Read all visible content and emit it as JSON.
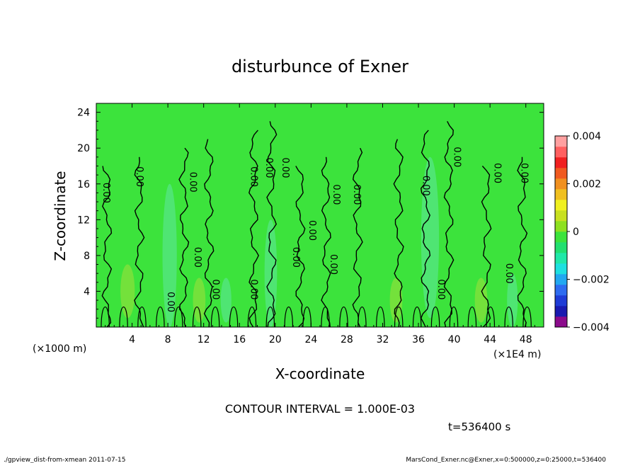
{
  "chart_data": {
    "type": "heatmap",
    "title": "disturbunce of Exner",
    "xlabel": "X-coordinate",
    "ylabel": "Z-coordinate",
    "x_unit_label": "(×1E4 m)",
    "y_unit_label": "(×1000 m)",
    "xlim": [
      0,
      50
    ],
    "ylim": [
      0,
      25
    ],
    "xticks": [
      4,
      8,
      12,
      16,
      20,
      24,
      28,
      32,
      36,
      40,
      44,
      48
    ],
    "yticks": [
      4,
      8,
      12,
      16,
      20,
      24
    ],
    "contour_interval_text": "CONTOUR INTERVAL = 1.000E-03",
    "contour_label": "0.00",
    "contour_label_positions": [
      {
        "x": 0.8,
        "y": 15.0
      },
      {
        "x": 4.5,
        "y": 16.8
      },
      {
        "x": 10.5,
        "y": 16.2
      },
      {
        "x": 17.3,
        "y": 16.8
      },
      {
        "x": 19.0,
        "y": 17.8
      },
      {
        "x": 20.8,
        "y": 17.8
      },
      {
        "x": 26.5,
        "y": 14.8
      },
      {
        "x": 28.8,
        "y": 14.8
      },
      {
        "x": 36.5,
        "y": 15.8
      },
      {
        "x": 40.0,
        "y": 19.0
      },
      {
        "x": 44.5,
        "y": 17.2
      },
      {
        "x": 47.5,
        "y": 17.2
      },
      {
        "x": 23.8,
        "y": 10.8
      },
      {
        "x": 11.0,
        "y": 7.8
      },
      {
        "x": 22.0,
        "y": 7.8
      },
      {
        "x": 26.2,
        "y": 7.0
      },
      {
        "x": 8.0,
        "y": 2.8
      },
      {
        "x": 13.0,
        "y": 4.2
      },
      {
        "x": 17.3,
        "y": 4.2
      },
      {
        "x": 38.2,
        "y": 4.2
      },
      {
        "x": 45.8,
        "y": 6.0
      }
    ],
    "colorbar": {
      "min": -0.004,
      "max": 0.004,
      "tick_labels": [
        "0.004",
        "0.002",
        "0",
        "−0.002",
        "−0.004"
      ],
      "tick_values": [
        0.004,
        0.002,
        0,
        -0.002,
        -0.004
      ],
      "colors": [
        "#8b0a8b",
        "#1a1ab0",
        "#1f3cd6",
        "#2e6cf0",
        "#22a8f0",
        "#1ee0e0",
        "#20e8a8",
        "#22e070",
        "#3ce33c",
        "#8ee020",
        "#c8e020",
        "#f0f020",
        "#f0c020",
        "#f09020",
        "#f05a20",
        "#f02020",
        "#ff6060",
        "#ffa0a0"
      ]
    },
    "field_base_color": "#3ce33c",
    "highlight_colors": {
      "cyan": "#5ee8a0",
      "yellow": "#a2e03a"
    },
    "time_label": "t=536400 s",
    "footer_left": "./gpview_dist-from-xmean  2011-07-15",
    "footer_right": "MarsCond_Exner.nc@Exner,x=0:500000,z=0:25000,t=536400"
  }
}
